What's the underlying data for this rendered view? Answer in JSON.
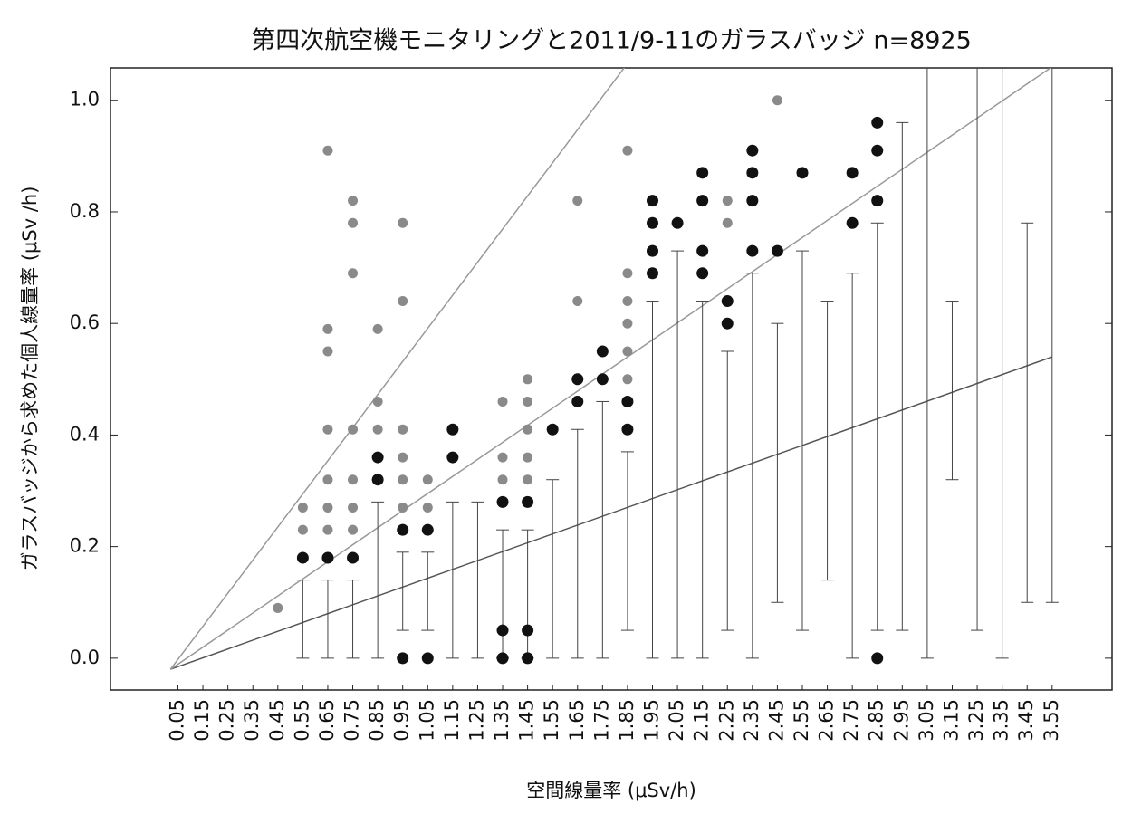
{
  "chart_data": {
    "type": "box",
    "title": "第四次航空機モニタリングと2011/9-11のガラスバッジ n=8925",
    "x_label": "空間線量率 (μSv/h)",
    "y_label": "ガラスバッジから求めた個人線量率 (μSv /h)",
    "xlim": [
      -0.22,
      3.79
    ],
    "ylim": [
      -0.057,
      1.058
    ],
    "xticks": [
      0.05,
      0.15,
      0.25,
      0.35,
      0.45,
      0.55,
      0.65,
      0.75,
      0.85,
      0.95,
      1.05,
      1.15,
      1.25,
      1.35,
      1.45,
      1.55,
      1.65,
      1.75,
      1.85,
      1.95,
      2.05,
      2.15,
      2.25,
      2.35,
      2.45,
      2.55,
      2.65,
      2.75,
      2.85,
      2.95,
      3.05,
      3.15,
      3.25,
      3.35,
      3.45,
      3.55
    ],
    "yticks": [
      {
        "value": 0,
        "label": "0.0"
      },
      {
        "value": 0.2,
        "label": "0.2"
      },
      {
        "value": 0.4,
        "label": "0.4"
      },
      {
        "value": 0.6,
        "label": "0.6"
      },
      {
        "value": 0.8,
        "label": "0.8"
      },
      {
        "value": 1,
        "label": "1.0"
      }
    ],
    "whisker_low": [
      null,
      null,
      null,
      null,
      null,
      0,
      0,
      0,
      0,
      0.05,
      0.05,
      0,
      0,
      0,
      0,
      0,
      0,
      0,
      0.05,
      0,
      0,
      0,
      0.05,
      0,
      0.1,
      0.05,
      0.14,
      0,
      0.05,
      0.05,
      0,
      0.32,
      0.05,
      0,
      0.1,
      0.1
    ],
    "whisker_high": [
      null,
      null,
      null,
      null,
      null,
      0.14,
      0.14,
      0.14,
      0.28,
      0.19,
      0.19,
      0.28,
      0.28,
      0.23,
      0.23,
      0.32,
      0.41,
      0.46,
      0.37,
      0.64,
      0.73,
      0.64,
      0.55,
      0.69,
      0.6,
      0.73,
      0.64,
      0.69,
      0.78,
      0.96,
      1.1,
      0.64,
      1.1,
      1.1,
      0.78,
      1.1
    ],
    "series": [
      {
        "color": "#111111",
        "x": [
          0.55,
          0.65,
          0.75,
          0.85,
          0.85,
          0.95,
          0.95,
          1.05,
          1.05,
          1.15,
          1.15,
          1.35,
          1.35,
          1.35,
          1.45,
          1.45,
          1.45,
          1.55,
          1.65,
          1.65,
          1.75,
          1.75,
          1.85,
          1.85,
          1.95,
          1.95,
          1.95,
          1.95,
          2.05,
          2.15,
          2.15,
          2.15,
          2.15,
          2.25,
          2.25,
          2.35,
          2.35,
          2.35,
          2.35,
          2.45,
          2.55,
          2.75,
          2.75,
          2.85,
          2.85,
          2.85,
          2.85
        ],
        "values": [
          0.18,
          0.18,
          0.18,
          0.32,
          0.36,
          0.23,
          0,
          0.23,
          0,
          0.36,
          0.41,
          0.28,
          0.05,
          0,
          0.28,
          0.05,
          0,
          0.41,
          0.46,
          0.5,
          0.5,
          0.55,
          0.41,
          0.46,
          0.69,
          0.73,
          0.78,
          0.82,
          0.78,
          0.69,
          0.73,
          0.82,
          0.87,
          0.6,
          0.64,
          0.73,
          0.82,
          0.87,
          0.91,
          0.73,
          0.87,
          0.78,
          0.87,
          0.82,
          0.91,
          0.96,
          0
        ]
      },
      {
        "color": "#8a8a8a",
        "x": [
          0.45,
          0.55,
          0.55,
          0.65,
          0.65,
          0.65,
          0.65,
          0.65,
          0.65,
          0.65,
          0.75,
          0.75,
          0.75,
          0.75,
          0.75,
          0.75,
          0.75,
          0.85,
          0.85,
          0.85,
          0.95,
          0.95,
          0.95,
          0.95,
          0.95,
          0.95,
          1.05,
          1.05,
          1.35,
          1.35,
          1.35,
          1.45,
          1.45,
          1.45,
          1.45,
          1.45,
          1.65,
          1.65,
          1.85,
          1.85,
          1.85,
          1.85,
          1.85,
          1.85,
          2.25,
          2.25,
          2.45
        ],
        "values": [
          0.09,
          0.23,
          0.27,
          0.23,
          0.27,
          0.32,
          0.41,
          0.55,
          0.59,
          0.91,
          0.23,
          0.27,
          0.32,
          0.41,
          0.69,
          0.78,
          0.82,
          0.41,
          0.46,
          0.59,
          0.27,
          0.32,
          0.36,
          0.41,
          0.64,
          0.78,
          0.27,
          0.32,
          0.32,
          0.36,
          0.46,
          0.32,
          0.36,
          0.41,
          0.46,
          0.5,
          0.64,
          0.82,
          0.5,
          0.55,
          0.6,
          0.64,
          0.69,
          0.91,
          0.78,
          0.82,
          1.0
        ]
      }
    ],
    "reference_lines": [
      {
        "color": "#555555",
        "x": [
          0.02,
          3.55
        ],
        "values": [
          -0.02,
          0.54
        ]
      },
      {
        "color": "#999999",
        "x": [
          0.02,
          3.55
        ],
        "values": [
          -0.02,
          1.06
        ]
      },
      {
        "color": "#999999",
        "x": [
          0.02,
          1.84
        ],
        "values": [
          -0.02,
          1.06
        ]
      }
    ]
  }
}
